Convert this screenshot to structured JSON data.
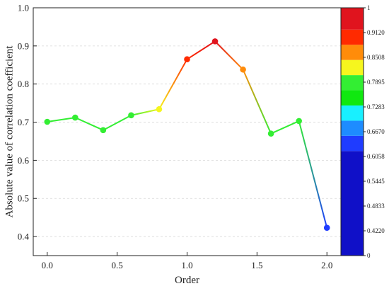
{
  "chart_data": {
    "type": "line",
    "title": "",
    "xlabel": "Order",
    "ylabel": "Absolute value of correlation coefficient",
    "xlim": [
      -0.1,
      2.1
    ],
    "ylim": [
      0.35,
      1.0
    ],
    "xticks": [
      "0.0",
      "0.5",
      "1.0",
      "1.5",
      "2.0"
    ],
    "yticks": [
      "0.4",
      "0.5",
      "0.6",
      "0.7",
      "0.8",
      "0.9",
      "1.0"
    ],
    "grid": "horizontal dashed",
    "series": [
      {
        "x": [
          0.0,
          0.2,
          0.4,
          0.6,
          0.8,
          1.0,
          1.2,
          1.4,
          1.6,
          1.8,
          2.0
        ],
        "y": [
          0.701,
          0.712,
          0.679,
          0.718,
          0.734,
          0.865,
          0.912,
          0.838,
          0.67,
          0.703,
          0.423
        ]
      }
    ],
    "colorbar": {
      "labels": [
        "1",
        "0.9120",
        "0.8508",
        "0.7895",
        "0.7283",
        "0.6670",
        "0.6058",
        "0.5445",
        "0.4833",
        "0.4220",
        "0"
      ],
      "bands": [
        {
          "from": 0.0,
          "to": 0.422,
          "color": "#1010c8"
        },
        {
          "from": 0.422,
          "to": 0.4833,
          "color": "#1f3cff"
        },
        {
          "from": 0.4833,
          "to": 0.5445,
          "color": "#1e8cff"
        },
        {
          "from": 0.5445,
          "to": 0.6058,
          "color": "#18f0ff"
        },
        {
          "from": 0.6058,
          "to": 0.667,
          "color": "#10e810"
        },
        {
          "from": 0.667,
          "to": 0.7283,
          "color": "#33ee33"
        },
        {
          "from": 0.7283,
          "to": 0.7895,
          "color": "#f6f61e"
        },
        {
          "from": 0.7895,
          "to": 0.8508,
          "color": "#ff8c0a"
        },
        {
          "from": 0.8508,
          "to": 0.912,
          "color": "#ff2a00"
        },
        {
          "from": 0.912,
          "to": 1.0,
          "color": "#e0141e"
        }
      ]
    }
  }
}
